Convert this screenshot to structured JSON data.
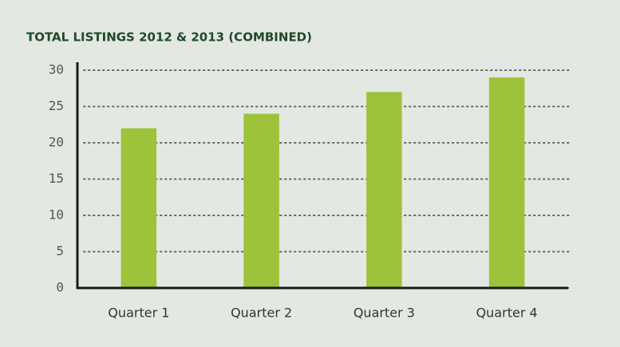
{
  "chart_data": {
    "type": "bar",
    "title": "TOTAL LISTINGS 2012 & 2013 (COMBINED)",
    "categories": [
      "Quarter 1",
      "Quarter 2",
      "Quarter 3",
      "Quarter 4"
    ],
    "values": [
      22,
      24,
      27,
      29
    ],
    "color": "#9dc33b",
    "ylim": [
      0,
      30
    ],
    "yticks": [
      0,
      5,
      10,
      15,
      20,
      25,
      30
    ],
    "grid": true
  }
}
